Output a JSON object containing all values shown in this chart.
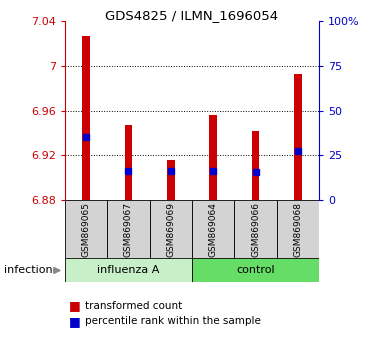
{
  "title": "GDS4825 / ILMN_1696054",
  "samples": [
    "GSM869065",
    "GSM869067",
    "GSM869069",
    "GSM869064",
    "GSM869066",
    "GSM869068"
  ],
  "bar_bottom": 6.88,
  "bar_tops": [
    7.027,
    6.947,
    6.916,
    6.956,
    6.942,
    6.993
  ],
  "blue_dots": [
    6.936,
    6.906,
    6.906,
    6.906,
    6.905,
    6.924
  ],
  "bar_color": "#cc0000",
  "dot_color": "#0000cc",
  "ylim_left": [
    6.88,
    7.04
  ],
  "ylim_right": [
    0,
    100
  ],
  "yticks_left": [
    6.88,
    6.92,
    6.96,
    7.0,
    7.04
  ],
  "ytick_labels_left": [
    "6.88",
    "6.92",
    "6.96",
    "7",
    "7.04"
  ],
  "yticks_right": [
    0,
    25,
    50,
    75,
    100
  ],
  "ytick_labels_right": [
    "0",
    "25",
    "50",
    "75",
    "100%"
  ],
  "grid_lines": [
    6.92,
    6.96,
    7.0
  ],
  "left_color": "#cc0000",
  "right_color": "#0000cc",
  "legend_labels": [
    "transformed count",
    "percentile rank within the sample"
  ],
  "infection_label": "infection",
  "bar_width": 0.18,
  "group_label_influenza": "influenza A",
  "group_label_control": "control",
  "group_color_light": "#c8f0c8",
  "group_color_dark": "#66dd66",
  "sample_bg_color": "#d3d3d3"
}
